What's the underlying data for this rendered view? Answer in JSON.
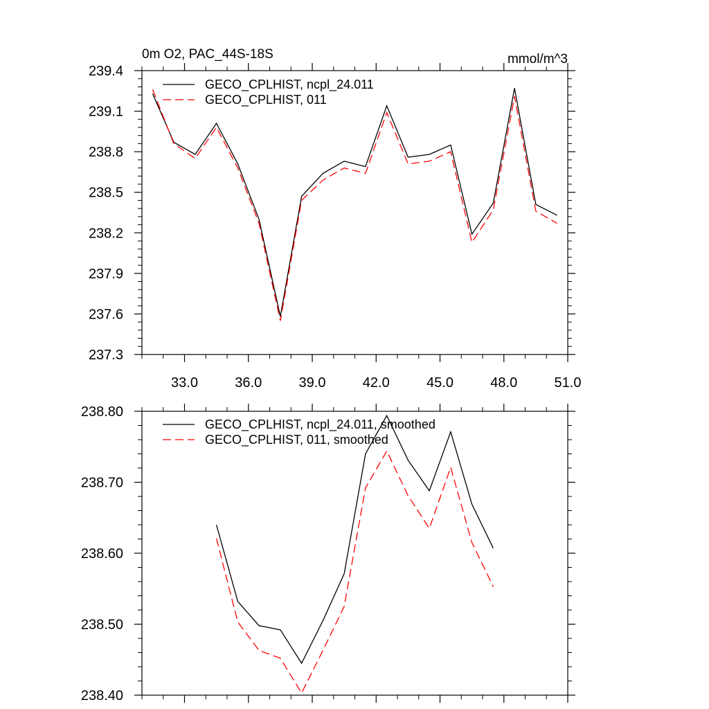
{
  "chart_data": [
    {
      "type": "line",
      "title": "0m O2, PAC_44S-18S",
      "units": "mmol/m^3",
      "xlabel": "",
      "ylabel": "",
      "xlim": [
        31.0,
        51.0
      ],
      "ylim": [
        237.3,
        239.4
      ],
      "xticks": [
        33.0,
        36.0,
        39.0,
        42.0,
        45.0,
        48.0,
        51.0
      ],
      "xtick_labels": [
        "33.0",
        "36.0",
        "39.0",
        "42.0",
        "45.0",
        "48.0",
        "51.0"
      ],
      "yticks": [
        237.3,
        237.6,
        237.9,
        238.2,
        238.5,
        238.8,
        239.1,
        239.4
      ],
      "ytick_labels": [
        "237.3",
        "237.6",
        "237.9",
        "238.2",
        "238.5",
        "238.8",
        "239.1",
        "239.4"
      ],
      "grid": false,
      "legend": "top-left",
      "series": [
        {
          "name": "GECO_CPLHIST, ncpl_24.011",
          "color": "#000000",
          "dash": "solid",
          "x": [
            31.5,
            32.5,
            33.5,
            34.5,
            35.5,
            36.5,
            37.5,
            38.5,
            39.5,
            40.5,
            41.5,
            42.5,
            43.5,
            44.5,
            45.5,
            46.5,
            47.5,
            48.5,
            49.5,
            50.5
          ],
          "values": [
            239.23,
            238.87,
            238.78,
            239.01,
            238.71,
            238.3,
            237.58,
            238.47,
            238.64,
            238.73,
            238.69,
            239.14,
            238.76,
            238.78,
            238.85,
            238.19,
            238.42,
            239.27,
            238.41,
            238.33
          ]
        },
        {
          "name": "GECO_CPLHIST, 011",
          "color": "#ff0000",
          "dash": "dashed",
          "x": [
            31.5,
            32.5,
            33.5,
            34.5,
            35.5,
            36.5,
            37.5,
            38.5,
            39.5,
            40.5,
            41.5,
            42.5,
            43.5,
            44.5,
            45.5,
            46.5,
            47.5,
            48.5,
            49.5,
            50.5
          ],
          "values": [
            239.26,
            238.86,
            238.75,
            238.98,
            238.68,
            238.27,
            237.55,
            238.44,
            238.59,
            238.68,
            238.64,
            239.09,
            238.71,
            238.73,
            238.8,
            238.13,
            238.37,
            239.21,
            238.36,
            238.27
          ]
        }
      ]
    },
    {
      "type": "line",
      "title": "",
      "xlabel": "",
      "ylabel": "",
      "xlim": [
        31.0,
        51.0
      ],
      "ylim": [
        238.4,
        238.8
      ],
      "xticks": [
        33.0,
        36.0,
        39.0,
        42.0,
        45.0,
        48.0,
        51.0
      ],
      "yticks": [
        238.4,
        238.5,
        238.6,
        238.7,
        238.8
      ],
      "ytick_labels": [
        "238.40",
        "238.50",
        "238.60",
        "238.70",
        "238.80"
      ],
      "grid": false,
      "legend": "top-left",
      "series": [
        {
          "name": "GECO_CPLHIST, ncpl_24.011, smoothed",
          "color": "#000000",
          "dash": "solid",
          "x": [
            34.5,
            35.5,
            36.5,
            37.5,
            38.5,
            39.5,
            40.5,
            41.5,
            42.5,
            43.5,
            44.5,
            45.5,
            46.5,
            47.5
          ],
          "values": [
            238.64,
            238.532,
            238.498,
            238.492,
            238.445,
            238.505,
            238.571,
            238.74,
            238.794,
            238.731,
            238.688,
            238.771,
            238.669,
            238.607
          ]
        },
        {
          "name": "GECO_CPLHIST, 011, smoothed",
          "color": "#ff0000",
          "dash": "dashed",
          "x": [
            34.5,
            35.5,
            36.5,
            37.5,
            38.5,
            39.5,
            40.5,
            41.5,
            42.5,
            43.5,
            44.5,
            45.5,
            46.5,
            47.5
          ],
          "values": [
            238.621,
            238.503,
            238.463,
            238.452,
            238.403,
            238.463,
            238.525,
            238.692,
            238.744,
            238.681,
            238.635,
            238.721,
            238.615,
            238.553
          ]
        }
      ]
    }
  ]
}
